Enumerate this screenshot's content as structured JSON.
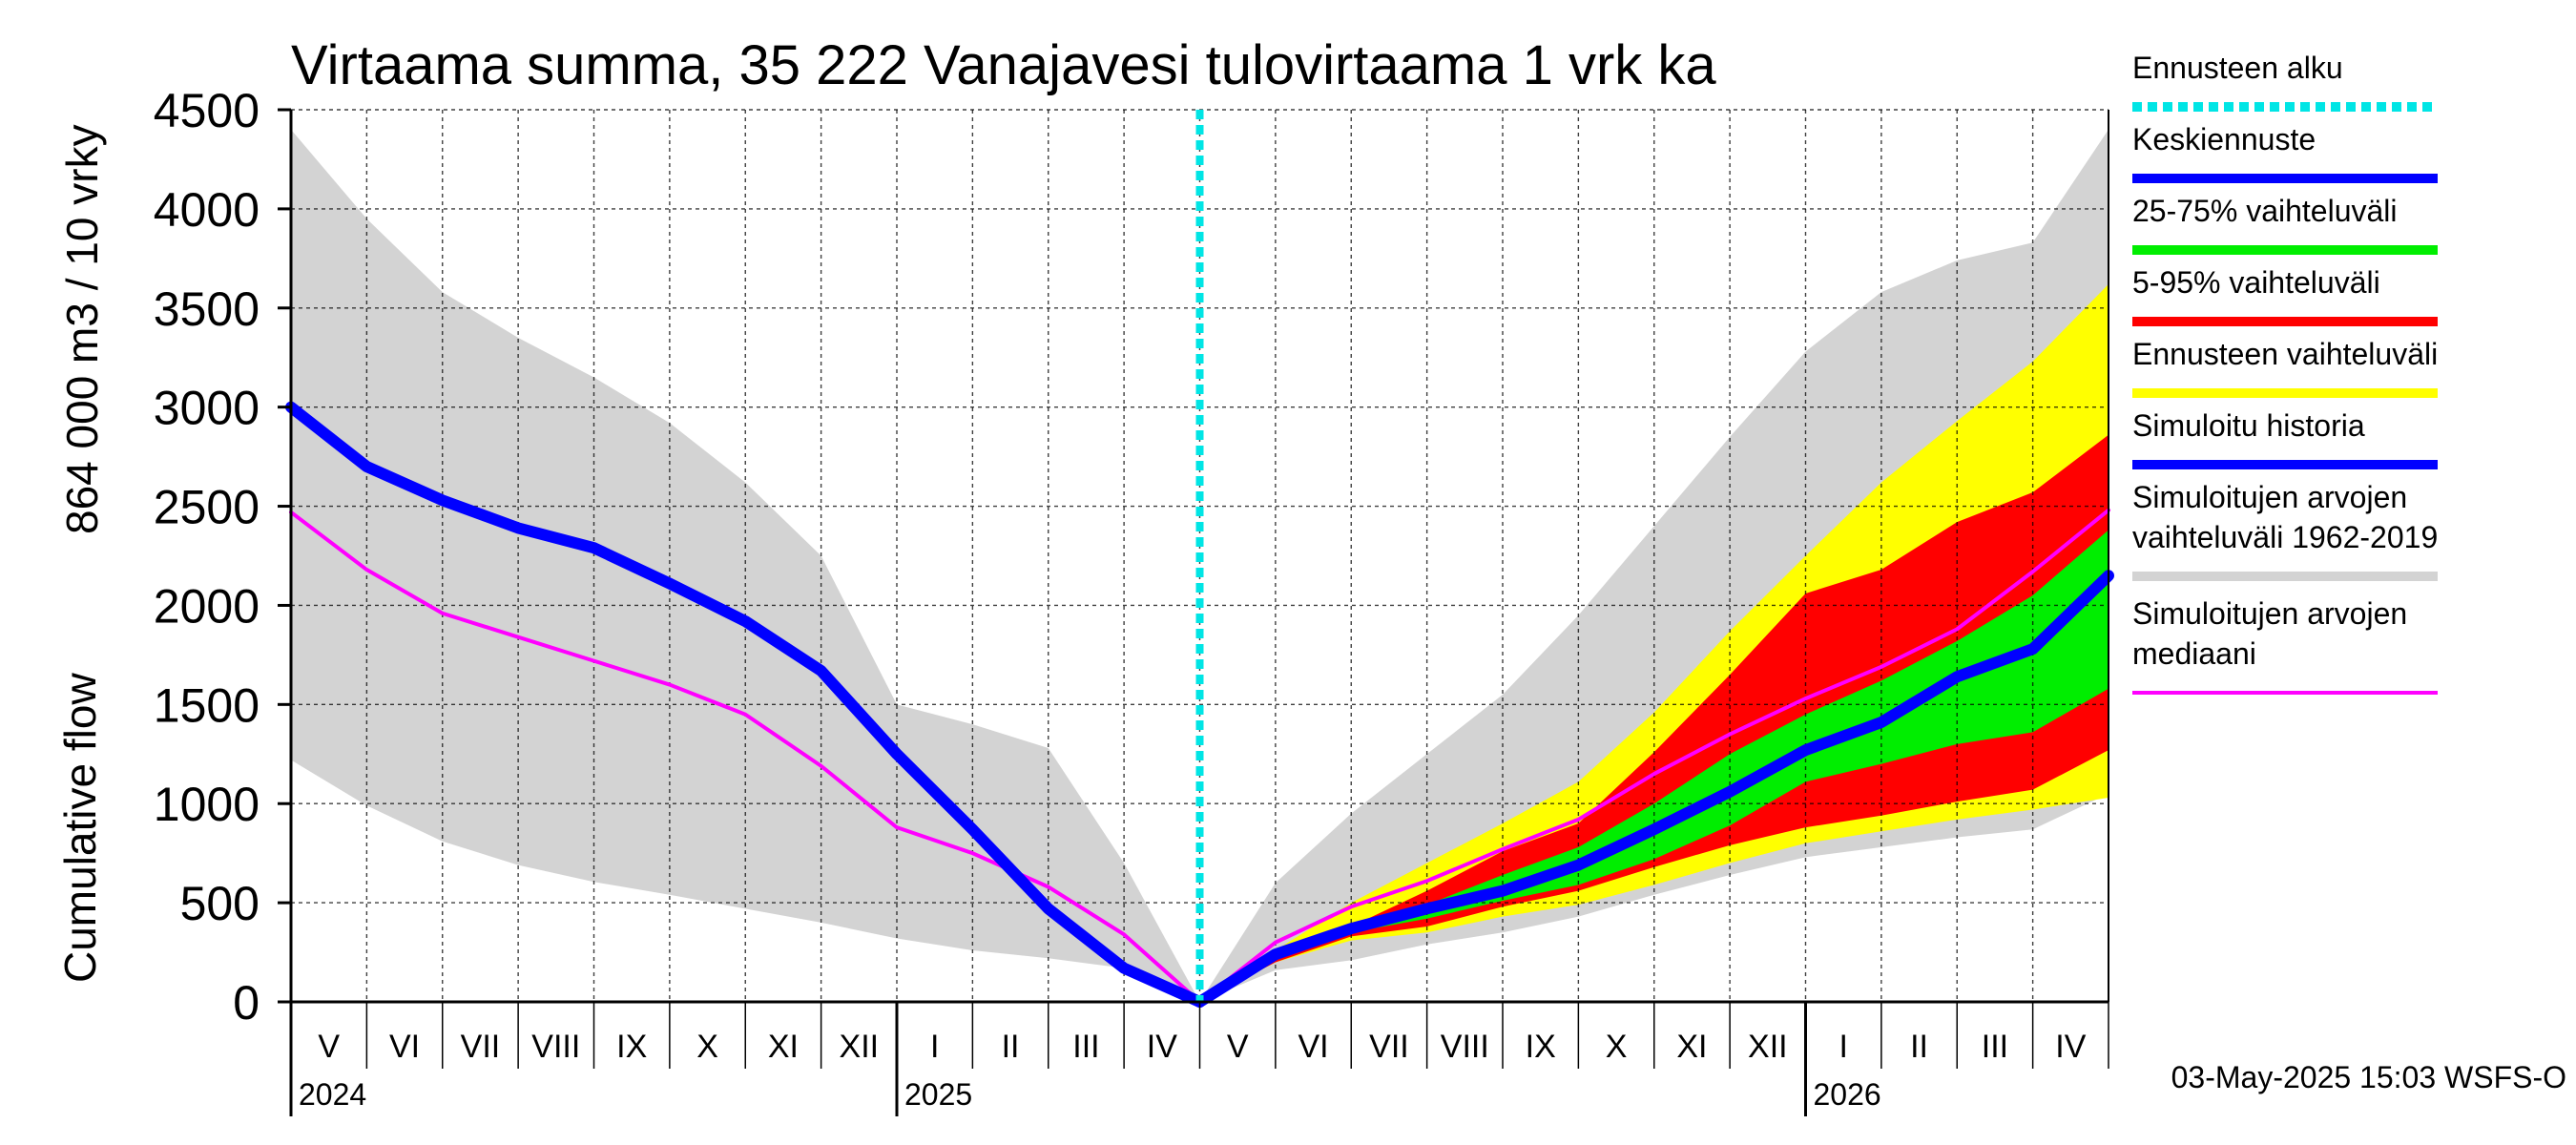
{
  "chart_data": {
    "type": "area",
    "title": "Virtaama summa, 35 222 Vanajavesi tulovirtaama 1 vrk ka",
    "ylabel_top": "864 000 m3 / 10 vrky",
    "ylabel_bottom": "Cumulative flow",
    "ylim": [
      0,
      4500
    ],
    "yticks": [
      0,
      500,
      1000,
      1500,
      2000,
      2500,
      3000,
      3500,
      4000,
      4500
    ],
    "grid": true,
    "x_unit": "month",
    "months": [
      "V",
      "VI",
      "VII",
      "VIII",
      "IX",
      "X",
      "XI",
      "XII",
      "I",
      "II",
      "III",
      "IV",
      "V",
      "VI",
      "VII",
      "VIII",
      "IX",
      "X",
      "XI",
      "XII",
      "I",
      "II",
      "III",
      "IV"
    ],
    "years": [
      {
        "label": "2024",
        "month_index": 0
      },
      {
        "label": "2025",
        "month_index": 8
      },
      {
        "label": "2026",
        "month_index": 20
      }
    ],
    "forecast_start_month": 12,
    "historical_range": {
      "name": "Simuloitujen arvojen vaihteluväli 1962-2019",
      "color": "#d3d3d3",
      "x": [
        0,
        1,
        2,
        3,
        4,
        5,
        6,
        7,
        8,
        9,
        10,
        11,
        12,
        13,
        14,
        15,
        16,
        17,
        18,
        19,
        20,
        21,
        22,
        23,
        24
      ],
      "upper": [
        4400,
        3950,
        3580,
        3350,
        3150,
        2920,
        2620,
        2250,
        1500,
        1400,
        1280,
        700,
        0,
        600,
        950,
        1250,
        1550,
        1950,
        2400,
        2850,
        3280,
        3580,
        3740,
        3830,
        4400
      ],
      "lower": [
        1220,
        990,
        810,
        690,
        605,
        540,
        470,
        400,
        320,
        260,
        220,
        170,
        0,
        160,
        210,
        290,
        350,
        430,
        540,
        640,
        730,
        780,
        830,
        870,
        1050
      ]
    },
    "history_median": {
      "name": "Simuloitujen arvojen mediaani",
      "color": "#ff00ff",
      "x": [
        0,
        1,
        2,
        3,
        4,
        5,
        6,
        7,
        8,
        9,
        10,
        11,
        12
      ],
      "values": [
        2470,
        2180,
        1960,
        1840,
        1720,
        1600,
        1450,
        1190,
        880,
        750,
        580,
        340,
        0
      ]
    },
    "simulated_history": {
      "name": "Simuloitu historia",
      "color": "#0000ff",
      "x": [
        0,
        1,
        2,
        3,
        4,
        5,
        6,
        7,
        8,
        9,
        10,
        11,
        12
      ],
      "values": [
        3000,
        2700,
        2530,
        2390,
        2290,
        2110,
        1920,
        1670,
        1250,
        870,
        470,
        170,
        0
      ]
    },
    "forecast_start": {
      "name": "Ennusteen alku",
      "color": "#00e5e5"
    },
    "forecast": {
      "x": [
        12,
        13,
        14,
        15,
        16,
        17,
        18,
        19,
        20,
        21,
        22,
        23,
        24
      ],
      "range_max": {
        "name": "Ennusteen vaihteluväli",
        "color": "#ffff00",
        "values": [
          0,
          260,
          500,
          700,
          900,
          1110,
          1460,
          1870,
          2250,
          2620,
          2930,
          3230,
          3620
        ]
      },
      "range_min": {
        "values": [
          0,
          200,
          310,
          350,
          430,
          490,
          590,
          700,
          800,
          860,
          920,
          970,
          1030
        ]
      },
      "p95": {
        "name": "5-95% vaihteluväli",
        "color": "#ff0000",
        "values": [
          0,
          240,
          380,
          560,
          760,
          900,
          1260,
          1650,
          2060,
          2180,
          2420,
          2570,
          2860
        ]
      },
      "p05": {
        "values": [
          0,
          200,
          330,
          380,
          480,
          560,
          680,
          790,
          880,
          940,
          1010,
          1070,
          1270
        ]
      },
      "p75": {
        "name": "25-75% vaihteluväli",
        "color": "#00ee00",
        "values": [
          0,
          250,
          380,
          490,
          640,
          780,
          1000,
          1250,
          1450,
          1620,
          1820,
          2050,
          2380
        ]
      },
      "p25": {
        "values": [
          0,
          230,
          350,
          420,
          510,
          590,
          720,
          890,
          1110,
          1200,
          1300,
          1360,
          1580
        ]
      },
      "median": {
        "name": "Keskiennuste",
        "color": "#0000ff",
        "values": [
          0,
          240,
          370,
          470,
          560,
          690,
          870,
          1060,
          1270,
          1410,
          1640,
          1780,
          2150
        ]
      },
      "clim_median": {
        "color": "#ff00ff",
        "values": [
          0,
          300,
          480,
          610,
          770,
          920,
          1150,
          1350,
          1530,
          1690,
          1880,
          2170,
          2480
        ]
      }
    }
  },
  "legend": [
    {
      "label": "Ennusteen alku",
      "color": "#00e5e5",
      "style": "dotted"
    },
    {
      "label": "Keskiennuste",
      "color": "#0000ff",
      "style": "solid"
    },
    {
      "label": "25-75% vaihteluväli",
      "color": "#00ee00",
      "style": "solid"
    },
    {
      "label": "5-95% vaihteluväli",
      "color": "#ff0000",
      "style": "solid"
    },
    {
      "label": "Ennusteen vaihteluväli",
      "color": "#ffff00",
      "style": "solid"
    },
    {
      "label": "Simuloitu historia",
      "color": "#0000ff",
      "style": "solid"
    },
    {
      "label": "Simuloitujen arvojen vaihteluväli 1962-2019",
      "color": "#d3d3d3",
      "style": "solid"
    },
    {
      "label": "Simuloitujen arvojen mediaani",
      "color": "#ff00ff",
      "style": "thin"
    }
  ],
  "legend_lines": [
    [
      "Ennusteen alku"
    ],
    [
      "Keskiennuste"
    ],
    [
      "25-75% vaihteluväli"
    ],
    [
      "5-95% vaihteluväli"
    ],
    [
      "Ennusteen vaihteluväli"
    ],
    [
      "Simuloitu historia"
    ],
    [
      "Simuloitujen arvojen",
      "vaihteluväli 1962-2019"
    ],
    [
      "Simuloitujen arvojen",
      "mediaani"
    ]
  ],
  "footer": "03-May-2025 15:03 WSFS-O"
}
